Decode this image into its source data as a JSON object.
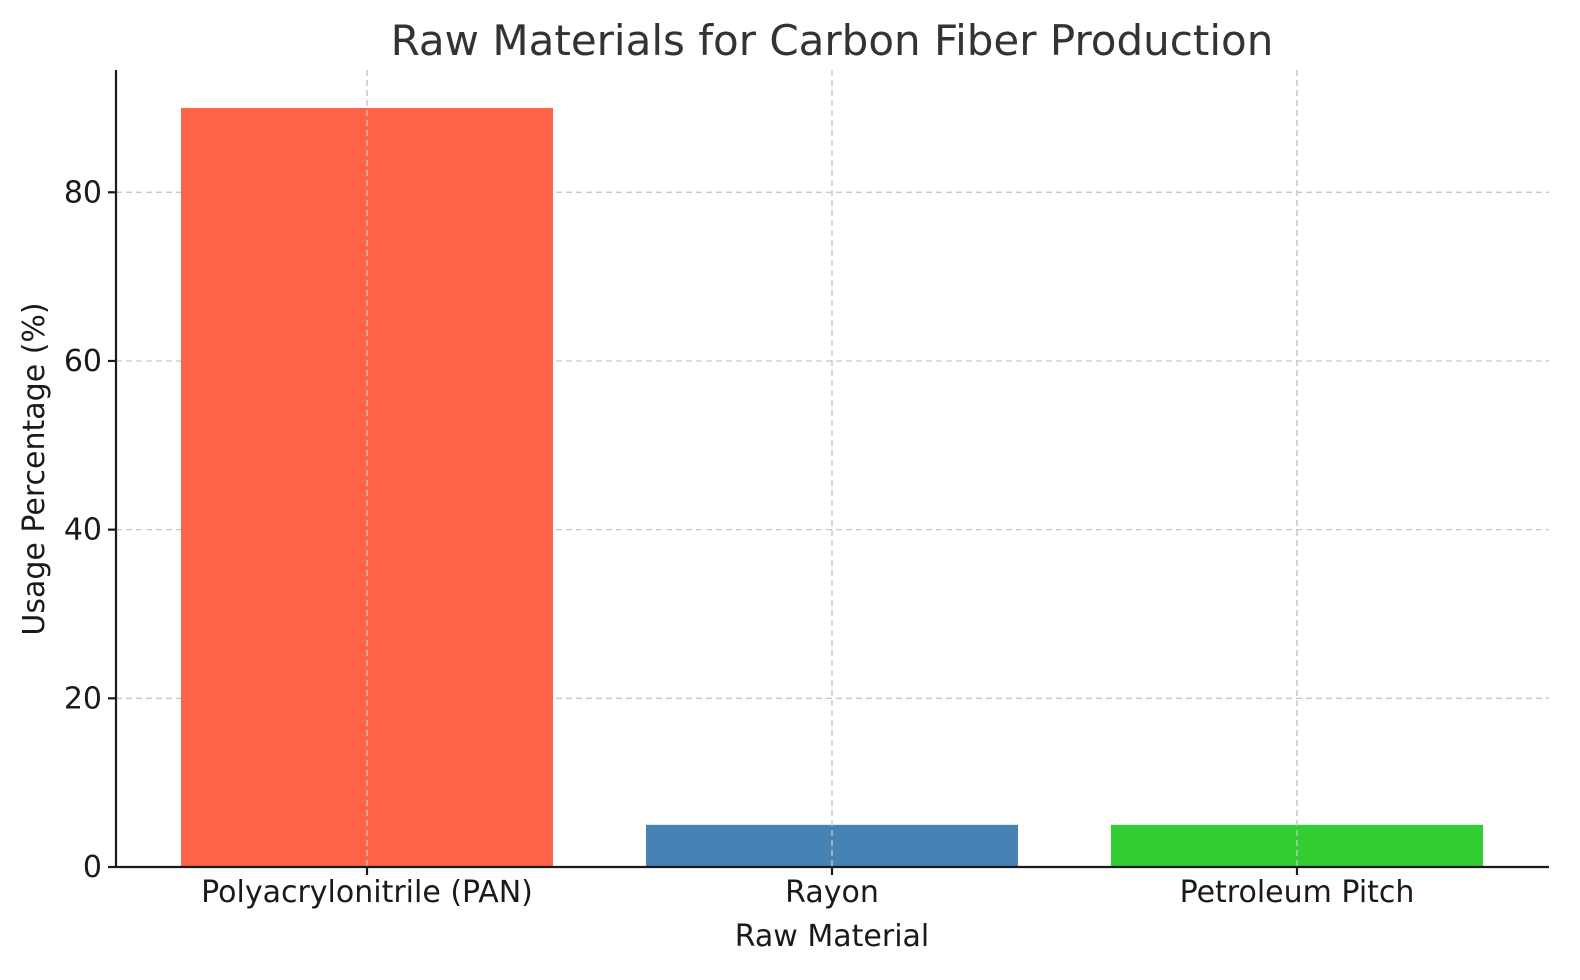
{
  "chart_data": {
    "type": "bar",
    "title": "Raw Materials for Carbon Fiber Production",
    "xlabel": "Raw Material",
    "ylabel": "Usage Percentage (%)",
    "categories": [
      "Polyacrylonitrile (PAN)",
      "Rayon",
      "Petroleum Pitch"
    ],
    "values": [
      90,
      5,
      5
    ],
    "colors": [
      "#ff6347",
      "#4682b4",
      "#32cd32"
    ],
    "ylim": [
      0,
      94.5
    ],
    "yticks": [
      0,
      20,
      40,
      60,
      80
    ],
    "grid": true,
    "legend": "none"
  }
}
